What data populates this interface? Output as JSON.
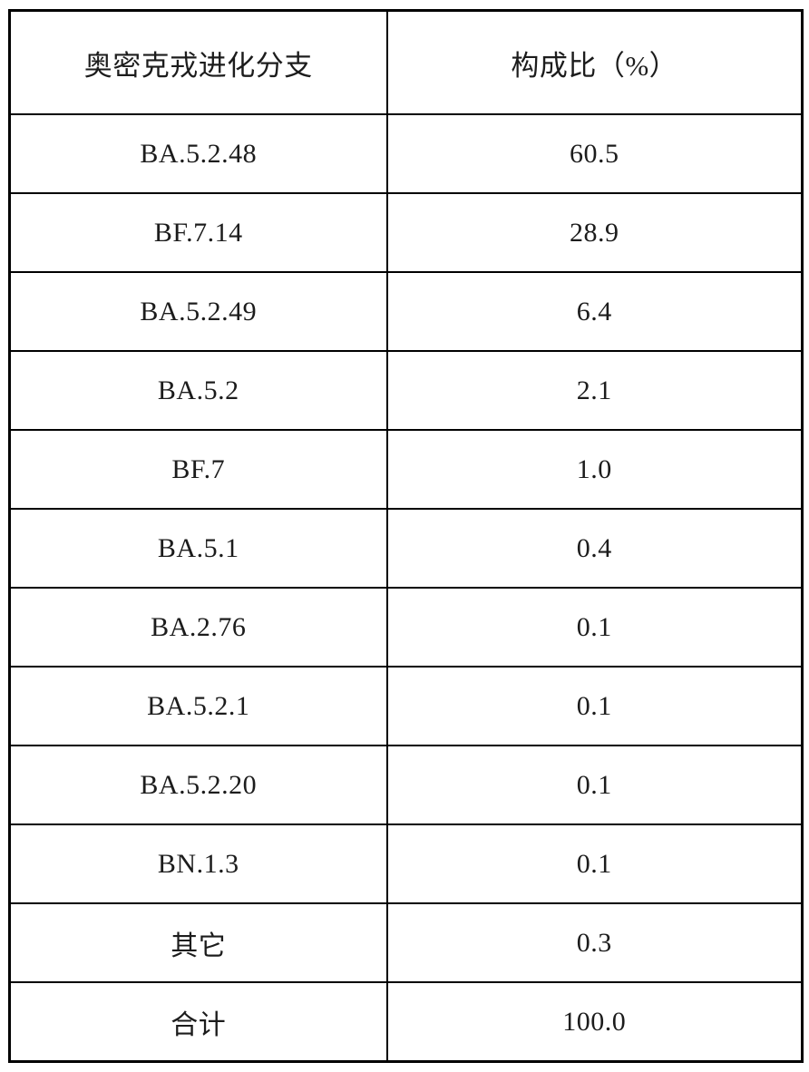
{
  "table": {
    "header": {
      "branch_label": "奥密克戎进化分支",
      "ratio_label": "构成比（%）"
    },
    "rows": [
      {
        "branch": "BA.5.2.48",
        "ratio": "60.5"
      },
      {
        "branch": "BF.7.14",
        "ratio": "28.9"
      },
      {
        "branch": "BA.5.2.49",
        "ratio": "6.4"
      },
      {
        "branch": "BA.5.2",
        "ratio": "2.1"
      },
      {
        "branch": "BF.7",
        "ratio": "1.0"
      },
      {
        "branch": "BA.5.1",
        "ratio": "0.4"
      },
      {
        "branch": "BA.2.76",
        "ratio": "0.1"
      },
      {
        "branch": "BA.5.2.1",
        "ratio": "0.1"
      },
      {
        "branch": "BA.5.2.20",
        "ratio": "0.1"
      },
      {
        "branch": "BN.1.3",
        "ratio": "0.1"
      },
      {
        "branch": "其它",
        "ratio": "0.3"
      },
      {
        "branch": "合计",
        "ratio": "100.0"
      }
    ]
  },
  "colors": {
    "border": "#000000",
    "text": "#1c1c1c",
    "background": "#ffffff"
  },
  "chart_data": {
    "type": "table",
    "title": "",
    "columns": [
      "奥密克戎进化分支",
      "构成比（%）"
    ],
    "categories": [
      "BA.5.2.48",
      "BF.7.14",
      "BA.5.2.49",
      "BA.5.2",
      "BF.7",
      "BA.5.1",
      "BA.2.76",
      "BA.5.2.1",
      "BA.5.2.20",
      "BN.1.3",
      "其它",
      "合计"
    ],
    "values": [
      60.5,
      28.9,
      6.4,
      2.1,
      1.0,
      0.4,
      0.1,
      0.1,
      0.1,
      0.1,
      0.3,
      100.0
    ]
  }
}
